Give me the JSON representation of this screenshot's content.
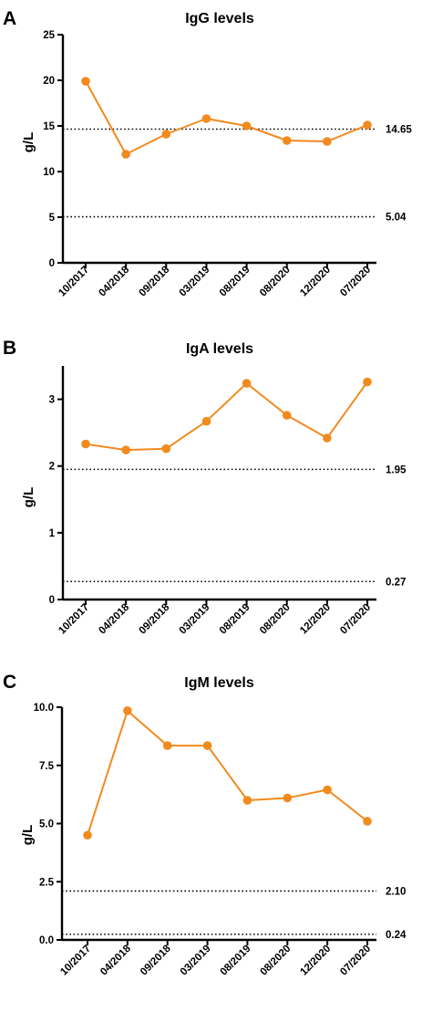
{
  "accent_color": "#f28a1e",
  "chart_data": [
    {
      "panel": "A",
      "type": "line",
      "title": "IgG levels",
      "ylabel": "g/L",
      "categories": [
        "10/2017",
        "04/2018",
        "09/2018",
        "03/2019",
        "08/2019",
        "08/2020",
        "12/2020",
        "07/2020"
      ],
      "values": [
        19.9,
        11.9,
        14.1,
        15.8,
        15.0,
        13.4,
        13.3,
        15.1
      ],
      "ylim": [
        0,
        25
      ],
      "yticks": [
        "0",
        "5",
        "10",
        "15",
        "20",
        "25"
      ],
      "reference_lines": [
        {
          "value": 14.65,
          "label": "14.65"
        },
        {
          "value": 5.04,
          "label": "5.04"
        }
      ],
      "grid": false
    },
    {
      "panel": "B",
      "type": "line",
      "title": "IgA levels",
      "ylabel": "g/L",
      "categories": [
        "10/2017",
        "04/2018",
        "09/2018",
        "03/2019",
        "08/2019",
        "08/2020",
        "12/2020",
        "07/2020"
      ],
      "values": [
        2.33,
        2.24,
        2.26,
        2.67,
        3.24,
        2.76,
        2.42,
        3.26
      ],
      "ylim": [
        0,
        3.5
      ],
      "yticks": [
        "0",
        "1",
        "2",
        "3"
      ],
      "reference_lines": [
        {
          "value": 1.95,
          "label": "1.95"
        },
        {
          "value": 0.27,
          "label": "0.27"
        }
      ],
      "grid": false
    },
    {
      "panel": "C",
      "type": "line",
      "title": "IgM levels",
      "ylabel": "g/L",
      "categories": [
        "10/2017",
        "04/2018",
        "09/2018",
        "03/2019",
        "08/2019",
        "08/2020",
        "12/2020",
        "07/2020"
      ],
      "values": [
        4.5,
        9.85,
        8.35,
        8.35,
        6.0,
        6.1,
        6.45,
        5.1
      ],
      "ylim": [
        0,
        10
      ],
      "yticks": [
        "0.0",
        "2.5",
        "5.0",
        "7.5",
        "10.0"
      ],
      "reference_lines": [
        {
          "value": 2.1,
          "label": "2.10"
        },
        {
          "value": 0.24,
          "label": "0.24"
        }
      ],
      "grid": false
    }
  ]
}
